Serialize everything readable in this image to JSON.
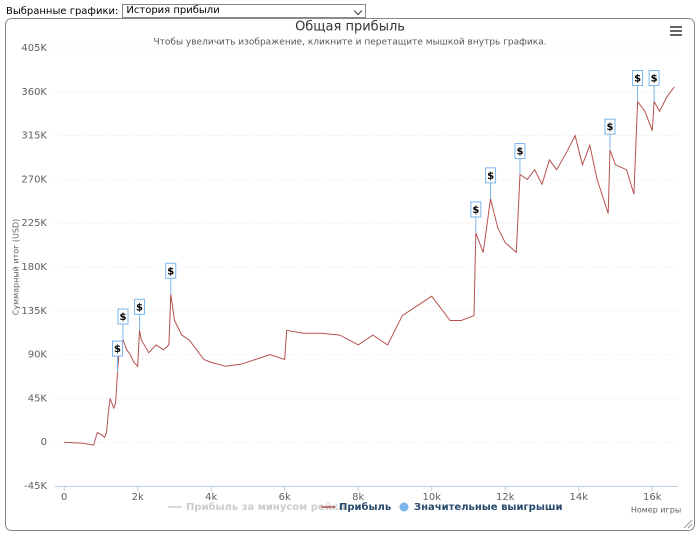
{
  "toolbar": {
    "label": "Выбранные графики:",
    "selected": "История прибыли"
  },
  "chart_data": {
    "type": "line",
    "title": "Общая прибыль",
    "subtitle": "Чтобы увеличить изображение, кликните и перетащите мышкой внутрь графика.",
    "y_label": "Суммарный итог (USD)",
    "x_label": "Номер игры",
    "xlim": [
      -250,
      16700
    ],
    "ylim": [
      -45000,
      405000
    ],
    "xticks": [
      0,
      {
        "value": 2000,
        "label": "2k"
      },
      {
        "value": 4000,
        "label": "4k"
      },
      {
        "value": 6000,
        "label": "6k"
      },
      {
        "value": 8000,
        "label": "8k"
      },
      {
        "value": 10000,
        "label": "10k"
      },
      {
        "value": 12000,
        "label": "12k"
      },
      {
        "value": 14000,
        "label": "14k"
      },
      {
        "value": 16000,
        "label": "16k"
      }
    ],
    "yticks": [
      {
        "value": -45000,
        "label": "-45K"
      },
      0,
      {
        "value": 45000,
        "label": "45K"
      },
      {
        "value": 90000,
        "label": "90K"
      },
      {
        "value": 135000,
        "label": "135K"
      },
      {
        "value": 180000,
        "label": "180K"
      },
      {
        "value": 225000,
        "label": "225K"
      },
      {
        "value": 270000,
        "label": "270K"
      },
      {
        "value": 315000,
        "label": "315K"
      },
      {
        "value": 360000,
        "label": "360K"
      },
      {
        "value": 405000,
        "label": "405K"
      }
    ],
    "grid": true,
    "flag_text": "$",
    "series": [
      {
        "name": "Прибыль за минусом рейка",
        "color": "#cccccc",
        "visible": false
      },
      {
        "name": "Прибыль",
        "color": "#b5524f",
        "x": [
          0,
          500,
          800,
          900,
          1000,
          1100,
          1150,
          1200,
          1250,
          1350,
          1400,
          1450,
          1500,
          1600,
          1700,
          1800,
          1900,
          2000,
          2050,
          2100,
          2300,
          2500,
          2700,
          2850,
          2900,
          3000,
          3200,
          3400,
          3600,
          3800,
          4000,
          4400,
          4800,
          5200,
          5600,
          6000,
          6050,
          6500,
          7000,
          7500,
          8000,
          8400,
          8800,
          9200,
          9600,
          10000,
          10200,
          10500,
          10800,
          11150,
          11200,
          11300,
          11400,
          11600,
          11800,
          12000,
          12300,
          12400,
          12600,
          12800,
          13000,
          13200,
          13400,
          13700,
          13900,
          14100,
          14300,
          14500,
          14800,
          14850,
          15000,
          15300,
          15500,
          15600,
          15800,
          16000,
          16050,
          16200,
          16400,
          16600
        ],
        "values": [
          0,
          -1000,
          -3000,
          10000,
          8000,
          5000,
          10000,
          30000,
          45000,
          35000,
          40000,
          72000,
          95000,
          105000,
          95000,
          90000,
          82000,
          78000,
          115000,
          105000,
          92000,
          100000,
          95000,
          100000,
          152000,
          125000,
          110000,
          105000,
          95000,
          85000,
          82000,
          78000,
          80000,
          85000,
          90000,
          85000,
          115000,
          112000,
          112000,
          110000,
          100000,
          110000,
          100000,
          130000,
          140000,
          150000,
          140000,
          125000,
          125000,
          130000,
          215000,
          205000,
          195000,
          250000,
          220000,
          205000,
          195000,
          275000,
          270000,
          280000,
          265000,
          290000,
          280000,
          300000,
          315000,
          285000,
          305000,
          270000,
          235000,
          300000,
          285000,
          280000,
          255000,
          350000,
          340000,
          320000,
          350000,
          340000,
          355000,
          365000
        ]
      },
      {
        "name": "Значительные выигрыши",
        "color": "#7cb5ec",
        "x": [
          1450,
          1600,
          2050,
          2900,
          11200,
          11600,
          12400,
          14850,
          15600,
          16050
        ],
        "values": [
          72000,
          105000,
          115000,
          152000,
          215000,
          250000,
          275000,
          300000,
          350000,
          350000
        ]
      }
    ]
  }
}
